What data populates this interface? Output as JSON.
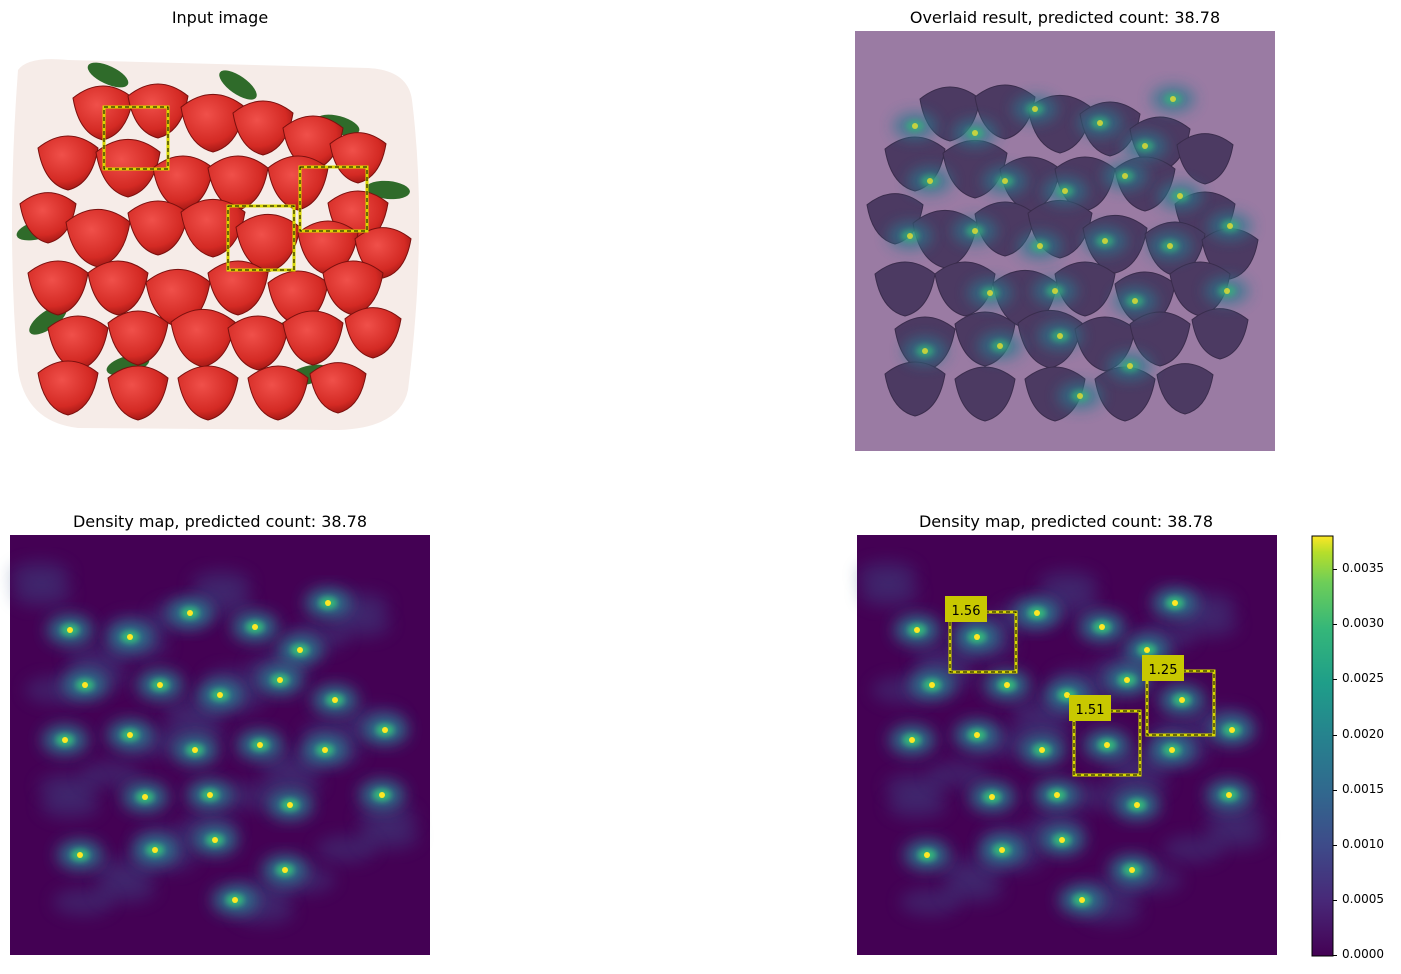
{
  "panels": {
    "input": {
      "title": "Input image"
    },
    "overlay": {
      "title": "Overlaid result, predicted count: 38.78"
    },
    "density": {
      "title": "Density map, predicted count: 38.78"
    },
    "density_boxes": {
      "title": "Density map, predicted count: 38.78"
    }
  },
  "box_labels": [
    "1.56",
    "1.25",
    "1.51"
  ],
  "colorbar": {
    "ticks": [
      "0.0035",
      "0.0030",
      "0.0025",
      "0.0020",
      "0.0015",
      "0.0010",
      "0.0005",
      "0.0000"
    ]
  },
  "colors": {
    "viridis_dark": "#440154",
    "viridis_mid": "#21918c",
    "viridis_yellow": "#fde725",
    "strawberry_red": "#d42a24",
    "overlay_purple": "#9a7ba3",
    "box_yellow": "#d8d800"
  }
}
